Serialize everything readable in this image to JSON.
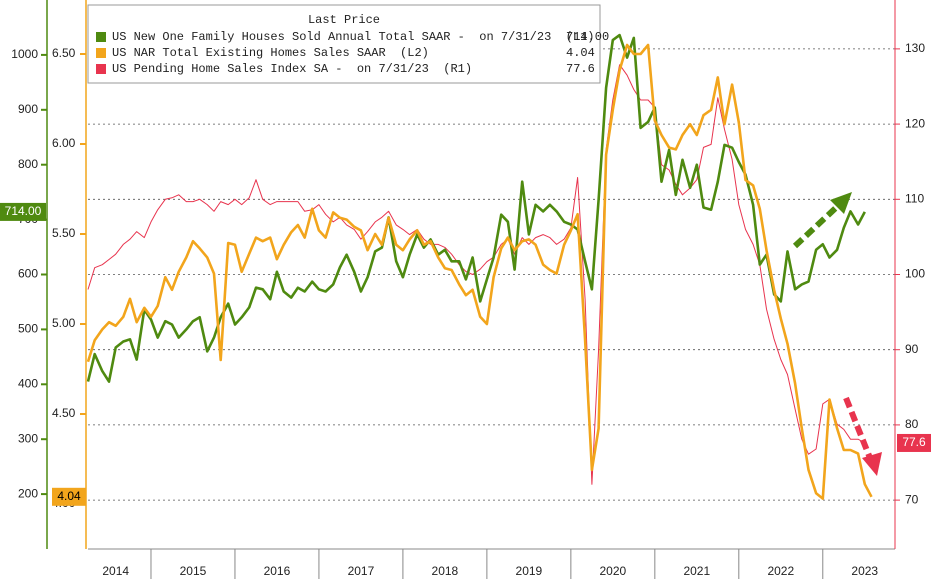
{
  "chart_data": {
    "type": "line",
    "x": [
      2014.25,
      2014.33,
      2014.42,
      2014.5,
      2014.58,
      2014.67,
      2014.75,
      2014.83,
      2014.92,
      2015,
      2015.08,
      2015.17,
      2015.25,
      2015.33,
      2015.42,
      2015.5,
      2015.58,
      2015.67,
      2015.75,
      2015.83,
      2015.92,
      2016,
      2016.08,
      2016.17,
      2016.25,
      2016.33,
      2016.42,
      2016.5,
      2016.58,
      2016.67,
      2016.75,
      2016.83,
      2016.92,
      2017,
      2017.08,
      2017.17,
      2017.25,
      2017.33,
      2017.42,
      2017.5,
      2017.58,
      2017.67,
      2017.75,
      2017.83,
      2017.92,
      2018,
      2018.08,
      2018.17,
      2018.25,
      2018.33,
      2018.42,
      2018.5,
      2018.58,
      2018.67,
      2018.75,
      2018.83,
      2018.92,
      2019,
      2019.08,
      2019.17,
      2019.25,
      2019.33,
      2019.42,
      2019.5,
      2019.58,
      2019.67,
      2019.75,
      2019.83,
      2019.92,
      2020,
      2020.08,
      2020.17,
      2020.25,
      2020.33,
      2020.42,
      2020.5,
      2020.58,
      2020.67,
      2020.75,
      2020.83,
      2020.92,
      2021,
      2021.08,
      2021.17,
      2021.25,
      2021.33,
      2021.42,
      2021.5,
      2021.58,
      2021.67,
      2021.75,
      2021.83,
      2021.92,
      2022,
      2022.08,
      2022.17,
      2022.25,
      2022.33,
      2022.42,
      2022.5,
      2022.58,
      2022.67,
      2022.75,
      2022.83,
      2022.92,
      2023,
      2023.08,
      2023.17,
      2023.25,
      2023.33,
      2023.42,
      2023.5,
      2023.58
    ],
    "xlim": [
      2014.25,
      2023.86
    ],
    "xticks": [
      {
        "value": 2014.58,
        "label": "2014"
      },
      {
        "value": 2015.5,
        "label": "2015"
      },
      {
        "value": 2016.5,
        "label": "2016"
      },
      {
        "value": 2017.5,
        "label": "2017"
      },
      {
        "value": 2018.5,
        "label": "2018"
      },
      {
        "value": 2019.5,
        "label": "2019"
      },
      {
        "value": 2020.5,
        "label": "2020"
      },
      {
        "value": 2021.5,
        "label": "2021"
      },
      {
        "value": 2022.5,
        "label": "2022"
      },
      {
        "value": 2023.5,
        "label": "2023"
      }
    ],
    "x_year_boundaries": [
      2015,
      2016,
      2017,
      2018,
      2019,
      2020,
      2021,
      2022,
      2023
    ],
    "ylim": [
      100,
      1100
    ],
    "yticks": [
      200,
      300,
      400,
      500,
      600,
      700,
      800,
      900,
      1000
    ],
    "y2lim": [
      3.75,
      6.8
    ],
    "y2ticks": [
      {
        "value": 4,
        "label": "4.00"
      },
      {
        "value": 4.5,
        "label": "4.50"
      },
      {
        "value": 5,
        "label": "5.00"
      },
      {
        "value": 5.5,
        "label": "5.50"
      },
      {
        "value": 6,
        "label": "6.00"
      },
      {
        "value": 6.5,
        "label": "6.50"
      }
    ],
    "y3lim": [
      63.5,
      136.5
    ],
    "y3ticks": [
      70,
      80,
      90,
      100,
      110,
      120,
      130
    ],
    "y3_grid": true,
    "legend_title": "Last Price",
    "series": [
      {
        "name": "US New One Family Houses Sold Annual Total SAAR -  on 7/31/23  (L1)",
        "color": "#4f8a10",
        "last_value_label": "714.00",
        "values": [
          405,
          455,
          424,
          405,
          467,
          478,
          482,
          445,
          536,
          518,
          485,
          515,
          509,
          485,
          500,
          515,
          522,
          460,
          485,
          522,
          547,
          509,
          522,
          540,
          576,
          573,
          555,
          605,
          569,
          558,
          576,
          569,
          587,
          573,
          569,
          582,
          613,
          636,
          605,
          569,
          595,
          642,
          649,
          704,
          624,
          595,
          636,
          673,
          649,
          664,
          636,
          645,
          624,
          624,
          591,
          631,
          551,
          591,
          631,
          709,
          696,
          609,
          769,
          673,
          727,
          715,
          727,
          715,
          696,
          691,
          682,
          624,
          573,
          736,
          940,
          1027,
          1036,
          995,
          1031,
          867,
          878,
          904,
          769,
          827,
          745,
          809,
          758,
          800,
          722,
          718,
          769,
          836,
          831,
          805,
          782,
          727,
          618,
          636,
          564,
          551,
          642,
          573,
          582,
          587,
          645,
          655,
          631,
          645,
          685,
          715,
          691,
          714,
          null
        ]
      },
      {
        "name": "US NAR Total Existing Homes Sales SAAR  (L2)",
        "color": "#f2a51c",
        "axis": "y2",
        "last_value_label": "4.04",
        "values": [
          4.79,
          4.91,
          4.97,
          5.01,
          4.99,
          5.04,
          5.14,
          5.01,
          5.09,
          5.04,
          5.1,
          5.26,
          5.19,
          5.29,
          5.37,
          5.46,
          5.42,
          5.37,
          5.28,
          4.8,
          5.45,
          5.44,
          5.29,
          5.39,
          5.48,
          5.46,
          5.48,
          5.36,
          5.44,
          5.51,
          5.55,
          5.48,
          5.64,
          5.52,
          5.48,
          5.62,
          5.59,
          5.58,
          5.54,
          5.52,
          5.41,
          5.5,
          5.44,
          5.59,
          5.44,
          5.41,
          5.47,
          5.52,
          5.44,
          5.46,
          5.37,
          5.31,
          5.3,
          5.22,
          5.16,
          5.19,
          5.04,
          5,
          5.26,
          5.42,
          5.48,
          5.41,
          5.46,
          5.47,
          5.44,
          5.33,
          5.3,
          5.28,
          5.44,
          5.52,
          5.61,
          4.91,
          4.19,
          4.42,
          5.94,
          6.19,
          6.41,
          6.55,
          6.5,
          6.5,
          6.55,
          6.13,
          6.05,
          5.98,
          5.97,
          6.05,
          6.11,
          6.05,
          6.16,
          6.19,
          6.37,
          6.11,
          6.33,
          6.12,
          5.8,
          5.77,
          5.64,
          5.41,
          5.19,
          5.03,
          4.89,
          4.67,
          4.42,
          4.19,
          4.06,
          4.03,
          4.58,
          4.42,
          4.3,
          4.3,
          4.28,
          4.11,
          4.04
        ]
      },
      {
        "name": "US Pending Home Sales Index SA -  on 7/31/23  (R1)",
        "color": "#e8344e",
        "axis": "y3",
        "last_value_label": "77.6",
        "values": [
          98,
          100.9,
          101.3,
          102,
          102.7,
          104,
          104.7,
          105.7,
          104.9,
          107,
          108.6,
          110,
          110.2,
          110.6,
          109.7,
          109.7,
          110,
          109.3,
          108.4,
          109.7,
          109.3,
          110,
          109.3,
          110.2,
          112.6,
          110,
          109.3,
          109.7,
          109.7,
          109.7,
          109.7,
          108.4,
          108.6,
          109.3,
          108,
          107,
          107.6,
          106.6,
          106,
          104.7,
          105.7,
          107,
          107.6,
          108.4,
          106.6,
          106,
          105.3,
          106,
          104.7,
          104,
          104,
          103.6,
          102.7,
          101.3,
          100.4,
          100,
          100.7,
          101.7,
          102.3,
          104,
          104.7,
          102.7,
          104.9,
          104,
          104.9,
          105.3,
          104.9,
          104,
          104.7,
          106.2,
          112.9,
          96.7,
          72.1,
          90,
          116.6,
          123.2,
          127.9,
          126.5,
          124.6,
          123.2,
          123.2,
          122.2,
          114.6,
          113.9,
          112,
          110.6,
          111.5,
          112.6,
          116.9,
          117.3,
          123.5,
          119.3,
          115.3,
          109.3,
          106,
          104,
          101.3,
          95.4,
          91.4,
          88.7,
          86.7,
          82.1,
          78.1,
          76.1,
          76.8,
          82.8,
          83.4,
          80.1,
          79.4,
          78.1,
          78.1,
          77.6,
          null
        ]
      }
    ]
  }
}
